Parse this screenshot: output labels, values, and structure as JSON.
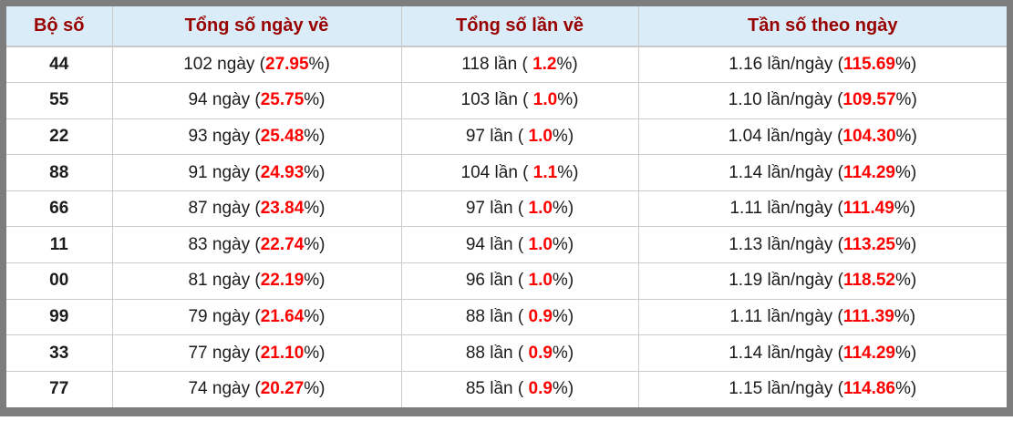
{
  "colors": {
    "frame_gray": "#7d7d7d",
    "header_bg": "#daecf7",
    "header_text": "#990000",
    "accent_red": "#fe0000",
    "cell_border": "#cccccc"
  },
  "table": {
    "columns": [
      {
        "label": "Bộ số"
      },
      {
        "label": "Tổng số ngày về"
      },
      {
        "label": "Tổng số lần về"
      },
      {
        "label": "Tần số theo ngày"
      }
    ],
    "rows": [
      {
        "pair": "44",
        "days": [
          "102 ngày (",
          "27.95",
          "%)"
        ],
        "times": [
          "118 lần ( ",
          "1.2",
          "%)"
        ],
        "freq": [
          "1.16 lần/ngày (",
          "115.69",
          "%)"
        ]
      },
      {
        "pair": "55",
        "days": [
          "94 ngày (",
          "25.75",
          "%)"
        ],
        "times": [
          "103 lần ( ",
          "1.0",
          "%)"
        ],
        "freq": [
          "1.10 lần/ngày (",
          "109.57",
          "%)"
        ]
      },
      {
        "pair": "22",
        "days": [
          "93 ngày (",
          "25.48",
          "%)"
        ],
        "times": [
          "97 lần ( ",
          "1.0",
          "%)"
        ],
        "freq": [
          "1.04 lần/ngày (",
          "104.30",
          "%)"
        ]
      },
      {
        "pair": "88",
        "days": [
          "91 ngày (",
          "24.93",
          "%)"
        ],
        "times": [
          "104 lần ( ",
          "1.1",
          "%)"
        ],
        "freq": [
          "1.14 lần/ngày (",
          "114.29",
          "%)"
        ]
      },
      {
        "pair": "66",
        "days": [
          "87 ngày (",
          "23.84",
          "%)"
        ],
        "times": [
          "97 lần ( ",
          "1.0",
          "%)"
        ],
        "freq": [
          "1.11 lần/ngày (",
          "111.49",
          "%)"
        ]
      },
      {
        "pair": "11",
        "days": [
          "83 ngày (",
          "22.74",
          "%)"
        ],
        "times": [
          "94 lần ( ",
          "1.0",
          "%)"
        ],
        "freq": [
          "1.13 lần/ngày (",
          "113.25",
          "%)"
        ]
      },
      {
        "pair": "00",
        "days": [
          "81 ngày (",
          "22.19",
          "%)"
        ],
        "times": [
          "96 lần ( ",
          "1.0",
          "%)"
        ],
        "freq": [
          "1.19 lần/ngày (",
          "118.52",
          "%)"
        ]
      },
      {
        "pair": "99",
        "days": [
          "79 ngày (",
          "21.64",
          "%)"
        ],
        "times": [
          "88 lần ( ",
          "0.9",
          "%)"
        ],
        "freq": [
          "1.11 lần/ngày (",
          "111.39",
          "%)"
        ]
      },
      {
        "pair": "33",
        "days": [
          "77 ngày (",
          "21.10",
          "%)"
        ],
        "times": [
          "88 lần ( ",
          "0.9",
          "%)"
        ],
        "freq": [
          "1.14 lần/ngày (",
          "114.29",
          "%)"
        ]
      },
      {
        "pair": "77",
        "days": [
          "74 ngày (",
          "20.27",
          "%)"
        ],
        "times": [
          "85 lần ( ",
          "0.9",
          "%)"
        ],
        "freq": [
          "1.15 lần/ngày (",
          "114.86",
          "%)"
        ]
      }
    ]
  }
}
